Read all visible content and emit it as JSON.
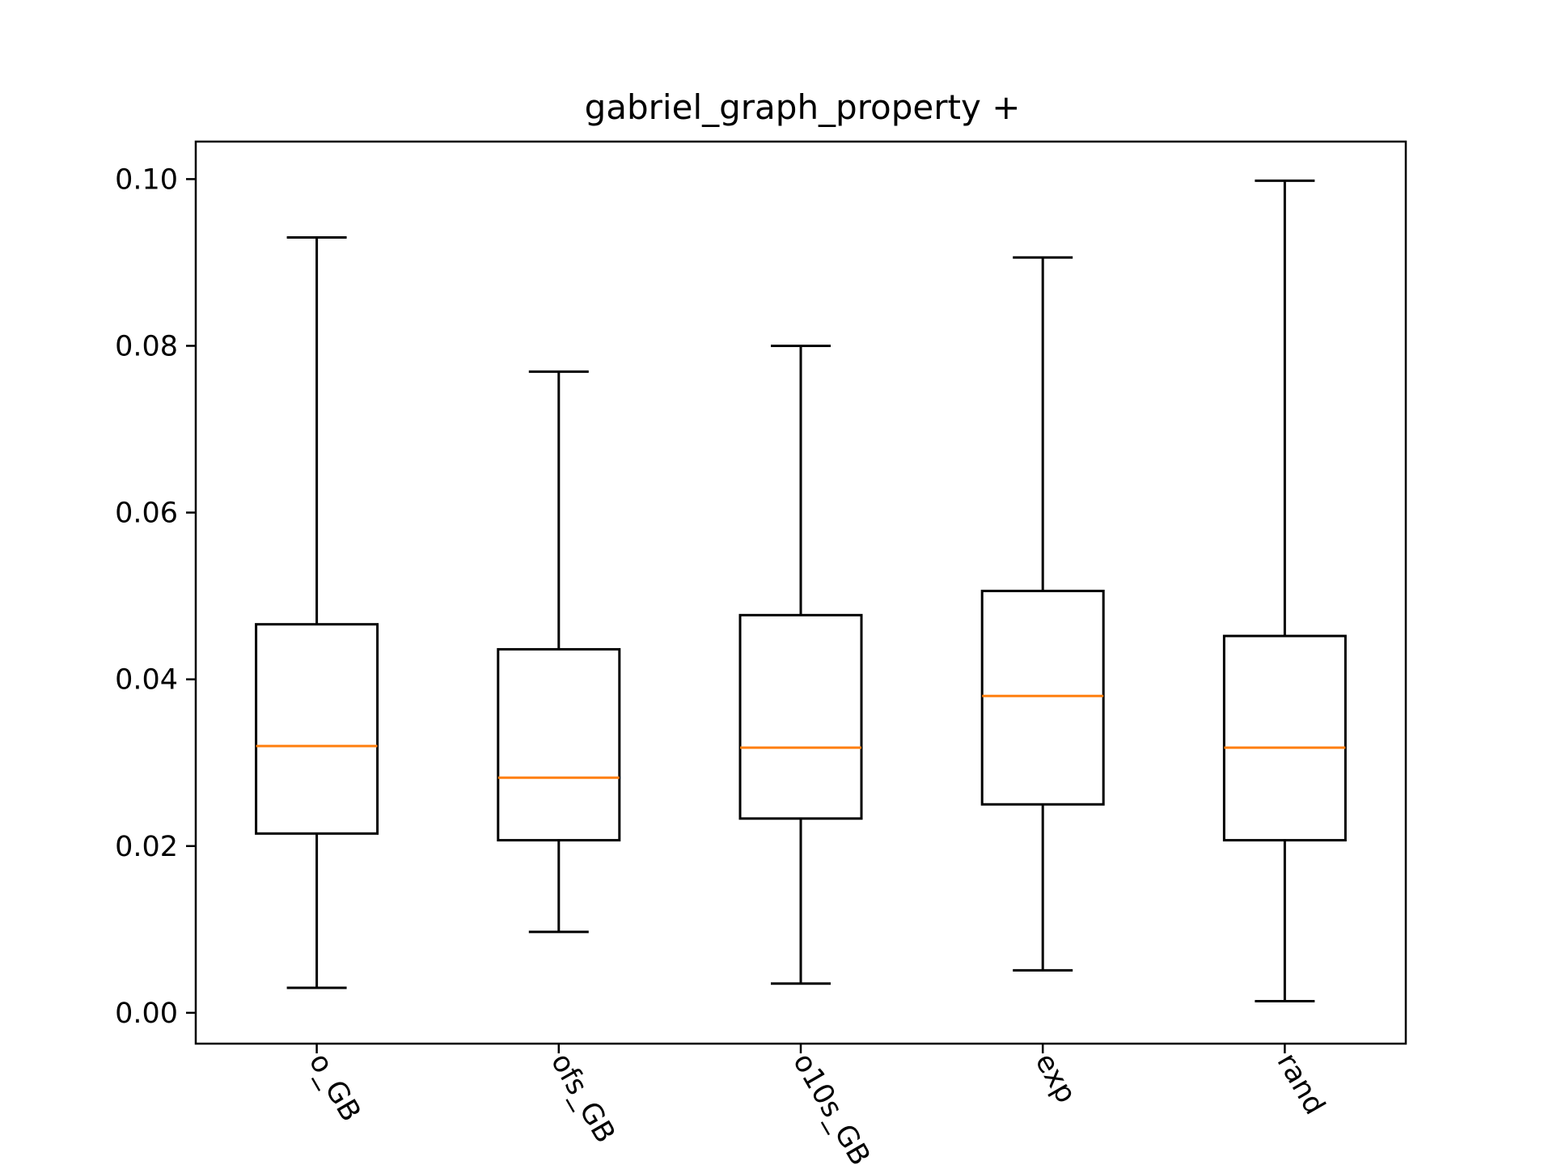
{
  "chart_data": {
    "type": "box",
    "title": "gabriel_graph_property +",
    "xlabel": "",
    "ylabel": "",
    "categories": [
      "o_GB",
      "ofs_GB",
      "o10s_GB",
      "exp",
      "rand"
    ],
    "boxes": [
      {
        "category": "o_GB",
        "whisker_low": 0.003,
        "q1": 0.0215,
        "median": 0.032,
        "q3": 0.0466,
        "whisker_high": 0.093
      },
      {
        "category": "ofs_GB",
        "whisker_low": 0.0097,
        "q1": 0.0207,
        "median": 0.0282,
        "q3": 0.0436,
        "whisker_high": 0.0769
      },
      {
        "category": "o10s_GB",
        "whisker_low": 0.0035,
        "q1": 0.0233,
        "median": 0.0318,
        "q3": 0.0477,
        "whisker_high": 0.08
      },
      {
        "category": "exp",
        "whisker_low": 0.0051,
        "q1": 0.025,
        "median": 0.038,
        "q3": 0.0506,
        "whisker_high": 0.0906
      },
      {
        "category": "rand",
        "whisker_low": 0.0014,
        "q1": 0.0207,
        "median": 0.0318,
        "q3": 0.0452,
        "whisker_high": 0.0998
      }
    ],
    "ylim": [
      -0.0037,
      0.1045
    ],
    "yticks": [
      0.0,
      0.02,
      0.04,
      0.06,
      0.08,
      0.1
    ],
    "ytick_labels": [
      "0.00",
      "0.02",
      "0.04",
      "0.06",
      "0.08",
      "0.10"
    ],
    "xtick_rotation": -60,
    "grid": false,
    "legend": false,
    "colors": {
      "box": "#000000",
      "median": "#ff7f0e",
      "axes": "#000000",
      "background": "#ffffff"
    }
  }
}
